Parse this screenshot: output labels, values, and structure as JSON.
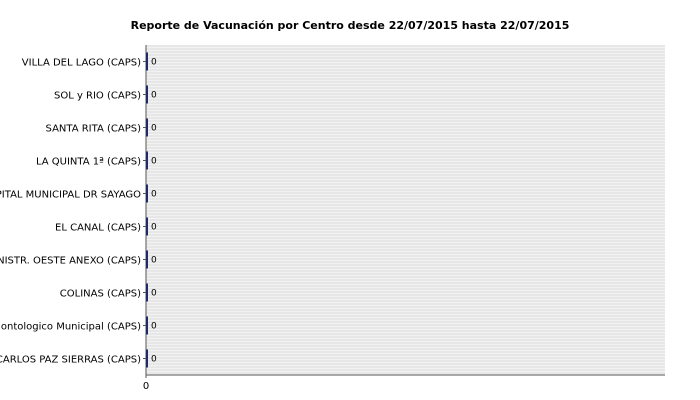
{
  "chart_data": {
    "type": "bar",
    "orientation": "horizontal",
    "title": "Reporte de Vacunación por Centro desde 22/07/2015 hasta 22/07/2015",
    "xlabel": "",
    "ylabel": "",
    "categories": [
      "VILLA DEL LAGO (CAPS)",
      "SOL y RIO (CAPS)",
      "SANTA RITA (CAPS)",
      "LA QUINTA 1ª (CAPS)",
      "HOSPITAL  MUNICIPAL DR SAYAGO",
      "EL CANAL (CAPS)",
      "ADMINISTR. OESTE ANEXO (CAPS)",
      "COLINAS (CAPS)",
      "Centro Odontologico Municipal (CAPS)",
      "CARLOS PAZ SIERRAS (CAPS)"
    ],
    "values": [
      0,
      0,
      0,
      0,
      0,
      0,
      0,
      0,
      0,
      0
    ],
    "data_labels": [
      "0",
      "0",
      "0",
      "0",
      "0",
      "0",
      "0",
      "0",
      "0",
      "0"
    ],
    "x_ticks": [
      "0"
    ],
    "xlim": [
      0,
      1
    ],
    "grid": true,
    "legend": "none",
    "bar_color": "#1f2a6b",
    "grid_color": "#dcdcdc",
    "plot_background": "#f2f2f2"
  }
}
